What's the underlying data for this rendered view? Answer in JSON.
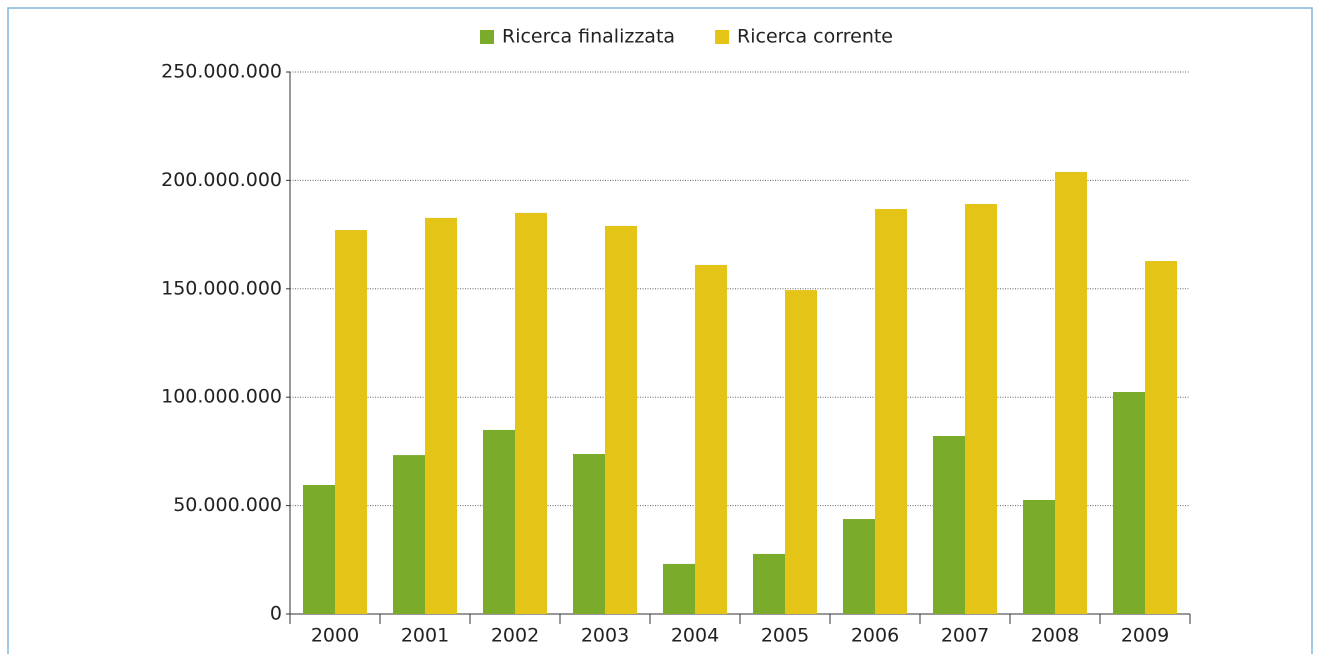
{
  "chart_data": {
    "type": "bar",
    "categories": [
      "2000",
      "2001",
      "2002",
      "2003",
      "2004",
      "2005",
      "2006",
      "2007",
      "2008",
      "2009"
    ],
    "series": [
      {
        "name": "Ricerca finalizzata",
        "color": "#7aab2a",
        "values": [
          59500000,
          73300000,
          84900000,
          73800000,
          23100000,
          27700000,
          43800000,
          82100000,
          52600000,
          102400000
        ]
      },
      {
        "name": "Ricerca corrente",
        "color": "#e5c418",
        "values": [
          177100000,
          182700000,
          185000000,
          179000000,
          161000000,
          149400000,
          186800000,
          189100000,
          203900000,
          162800000
        ]
      }
    ],
    "ylim": [
      0,
      250000000
    ],
    "yticks": [
      0,
      {
        "value": 50000000,
        "label": "50.000.000"
      },
      {
        "value": 100000000,
        "label": "100.000.000"
      },
      {
        "value": 150000000,
        "label": "150.000.000"
      },
      {
        "value": 200000000,
        "label": "200.000.000"
      },
      {
        "value": 250000000,
        "label": "250.000.000"
      }
    ],
    "grid": true,
    "legend": "top"
  }
}
